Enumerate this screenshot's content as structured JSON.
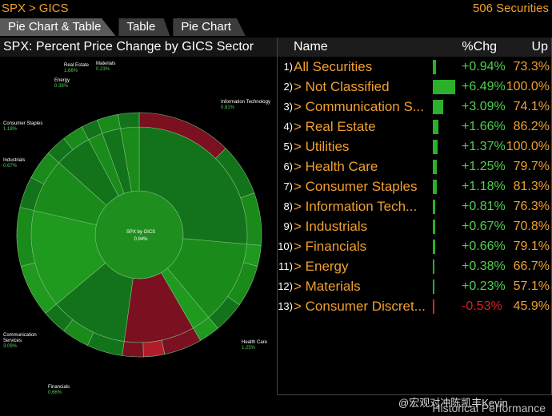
{
  "header": {
    "crumb1": "SPX",
    "crumb2": "GICS",
    "separator": ">",
    "count": "506 Securities"
  },
  "tabs": [
    {
      "label": "Pie Chart & Table"
    },
    {
      "label": "Table"
    },
    {
      "label": "Pie Chart"
    }
  ],
  "chart": {
    "title": "SPX: Percent Price Change by GICS Sector",
    "center_label": "SPX by GICS",
    "center_value": "0.94%",
    "labels": {
      "real_estate": {
        "name": "Real Estate",
        "value": "1.66%"
      },
      "materials": {
        "name": "Materials",
        "value": "0.23%"
      },
      "energy": {
        "name": "Energy",
        "value": "0.38%"
      },
      "info_tech": {
        "name": "Information Technology",
        "value": "0.81%"
      },
      "consumer_staples": {
        "name": "Consumer Staples",
        "value": "1.18%"
      },
      "industrials": {
        "name": "Industrials",
        "value": "0.67%"
      },
      "communication": {
        "name": "Communication Services",
        "name1": "Communication",
        "name2": "Services",
        "value": "3.09%"
      },
      "health_care": {
        "name": "Health Care",
        "value": "1.25%"
      },
      "financials": {
        "name": "Financials",
        "value": "0.66%"
      }
    }
  },
  "table": {
    "headers": {
      "name": "Name",
      "chg": "%Chg",
      "up": "Up"
    },
    "rows": [
      {
        "num": "1)",
        "label": "All Securities",
        "chg": "+0.94%",
        "up": "73.3%",
        "value": 0.94
      },
      {
        "num": "2)",
        "label": "> Not Classified",
        "chg": "+6.49%",
        "up": "100.0%",
        "value": 6.49
      },
      {
        "num": "3)",
        "label": "> Communication S...",
        "chg": "+3.09%",
        "up": "74.1%",
        "value": 3.09
      },
      {
        "num": "4)",
        "label": "> Real Estate",
        "chg": "+1.66%",
        "up": "86.2%",
        "value": 1.66
      },
      {
        "num": "5)",
        "label": "> Utilities",
        "chg": "+1.37%",
        "up": "100.0%",
        "value": 1.37
      },
      {
        "num": "6)",
        "label": "> Health Care",
        "chg": "+1.25%",
        "up": "79.7%",
        "value": 1.25
      },
      {
        "num": "7)",
        "label": "> Consumer Staples",
        "chg": "+1.18%",
        "up": "81.3%",
        "value": 1.18
      },
      {
        "num": "8)",
        "label": "> Information Tech...",
        "chg": "+0.81%",
        "up": "76.3%",
        "value": 0.81
      },
      {
        "num": "9)",
        "label": "> Industrials",
        "chg": "+0.67%",
        "up": "70.8%",
        "value": 0.67
      },
      {
        "num": "10)",
        "label": "> Financials",
        "chg": "+0.66%",
        "up": "79.1%",
        "value": 0.66
      },
      {
        "num": "11)",
        "label": "> Energy",
        "chg": "+0.38%",
        "up": "66.7%",
        "value": 0.38
      },
      {
        "num": "12)",
        "label": "> Materials",
        "chg": "+0.23%",
        "up": "57.1%",
        "value": 0.23
      },
      {
        "num": "13)",
        "label": "> Consumer Discret...",
        "chg": "-0.53%",
        "up": "45.9%",
        "value": -0.53
      }
    ]
  },
  "footer": {
    "text": "Historical Performance"
  },
  "watermark": {
    "text": "@宏观对冲陈凯丰Kevin"
  },
  "colors": {
    "accent": "#f0a030",
    "positive": "#2ab02a",
    "negative": "#e02020",
    "dark_red": "#7a1020"
  }
}
